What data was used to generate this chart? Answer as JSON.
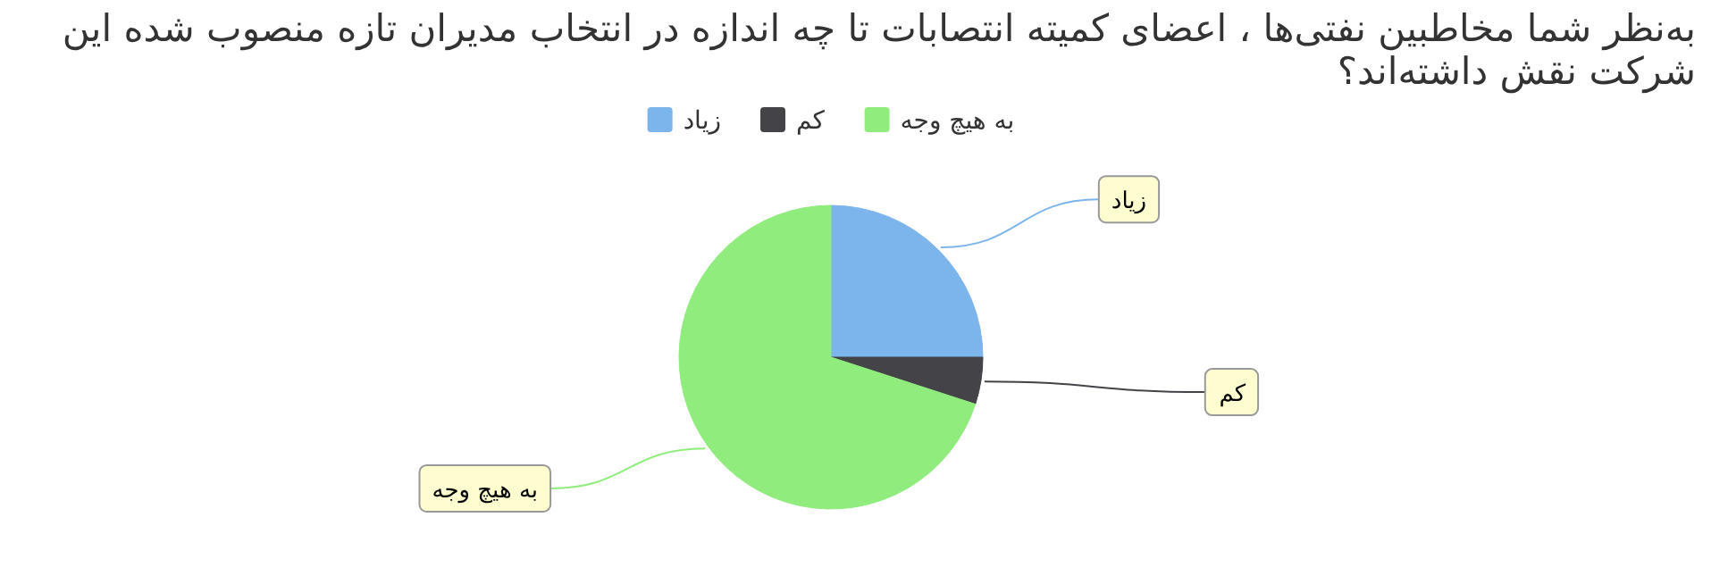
{
  "chart_data": {
    "type": "pie",
    "title": "به‌نظر شما مخاطبین نفتی‌ها ، اعضای کمیته انتصابات تا چه اندازه در انتخاب مدیران تازه منصوب شده این شرکت نقش داشته‌اند؟",
    "categories": [
      "زیاد",
      "کم",
      "به هیچ وجه"
    ],
    "values": [
      25,
      5,
      70
    ],
    "colors": [
      "#7cb5ec",
      "#434348",
      "#90ed7d"
    ],
    "legend": "top"
  }
}
